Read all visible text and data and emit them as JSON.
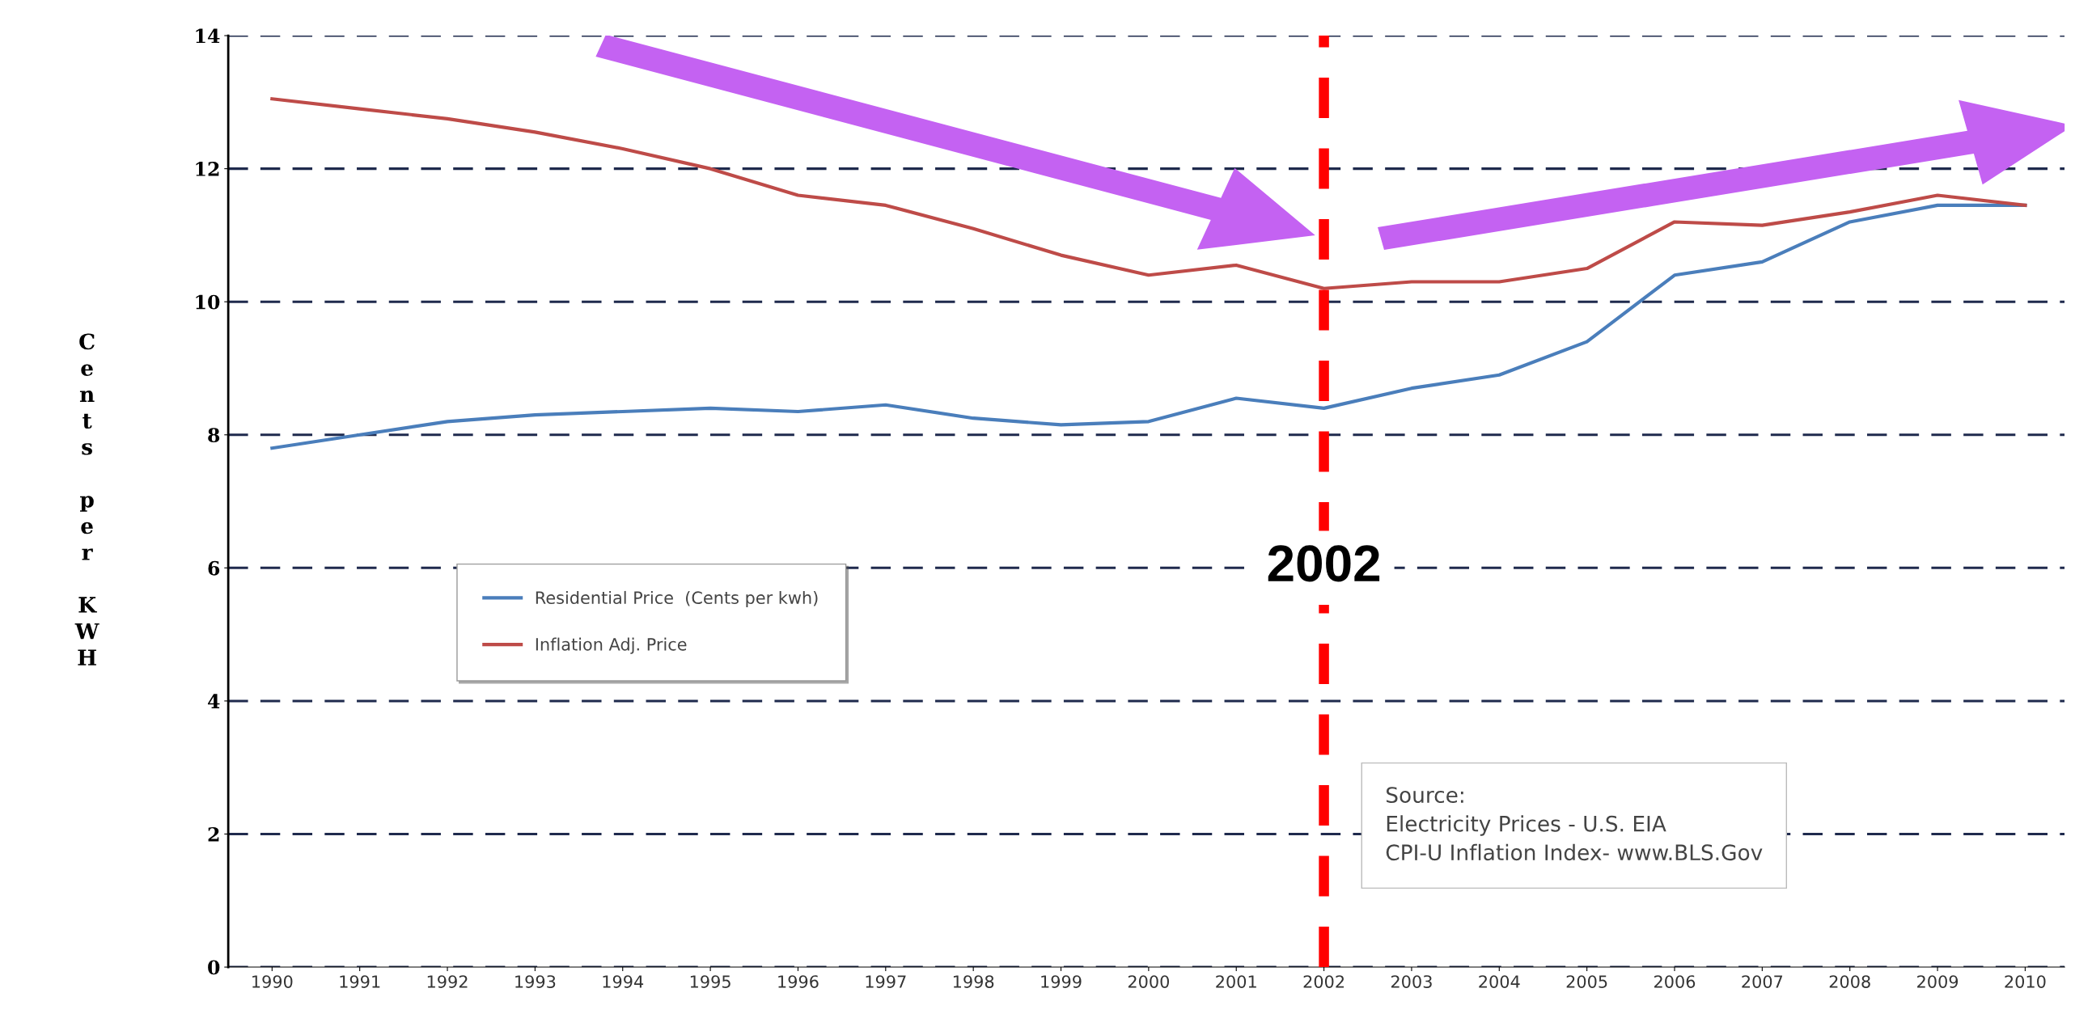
{
  "chart_data": {
    "type": "line",
    "ylabel": "Cents per KWH",
    "categories": [
      "1990",
      "1991",
      "1992",
      "1993",
      "1994",
      "1995",
      "1996",
      "1997",
      "1998",
      "1999",
      "2000",
      "2001",
      "2002",
      "2003",
      "2004",
      "2005",
      "2006",
      "2007",
      "2008",
      "2009",
      "2010"
    ],
    "series": [
      {
        "name": "Residential Price  (Cents per kwh)",
        "color": "#4a7ebb",
        "values": [
          7.8,
          8.0,
          8.2,
          8.3,
          8.35,
          8.4,
          8.35,
          8.45,
          8.25,
          8.15,
          8.2,
          8.55,
          8.4,
          8.7,
          8.9,
          9.4,
          10.4,
          10.6,
          11.2,
          11.45,
          11.45
        ]
      },
      {
        "name": "Inflation Adj. Price",
        "color": "#be4b48",
        "values": [
          13.05,
          12.9,
          12.75,
          12.55,
          12.3,
          12.0,
          11.6,
          11.45,
          11.1,
          10.7,
          10.4,
          10.55,
          10.2,
          10.3,
          10.3,
          10.5,
          11.2,
          11.15,
          11.35,
          11.6,
          11.45
        ]
      }
    ],
    "ylim": [
      0,
      14
    ],
    "yticks": [
      0,
      2,
      4,
      6,
      8,
      10,
      12,
      14
    ],
    "ref_lines": [
      {
        "axis": "x",
        "value": "2002",
        "label": "2002",
        "color": "#ff0000",
        "line_style": "dashed"
      }
    ],
    "annotations": [
      "Source:\nElectricity Prices - U.S. EIA\nCPI-U Inflation Index- www.BLS.Gov"
    ],
    "grid": "y",
    "legend": "left",
    "marker": "none",
    "line_style": "solid"
  }
}
